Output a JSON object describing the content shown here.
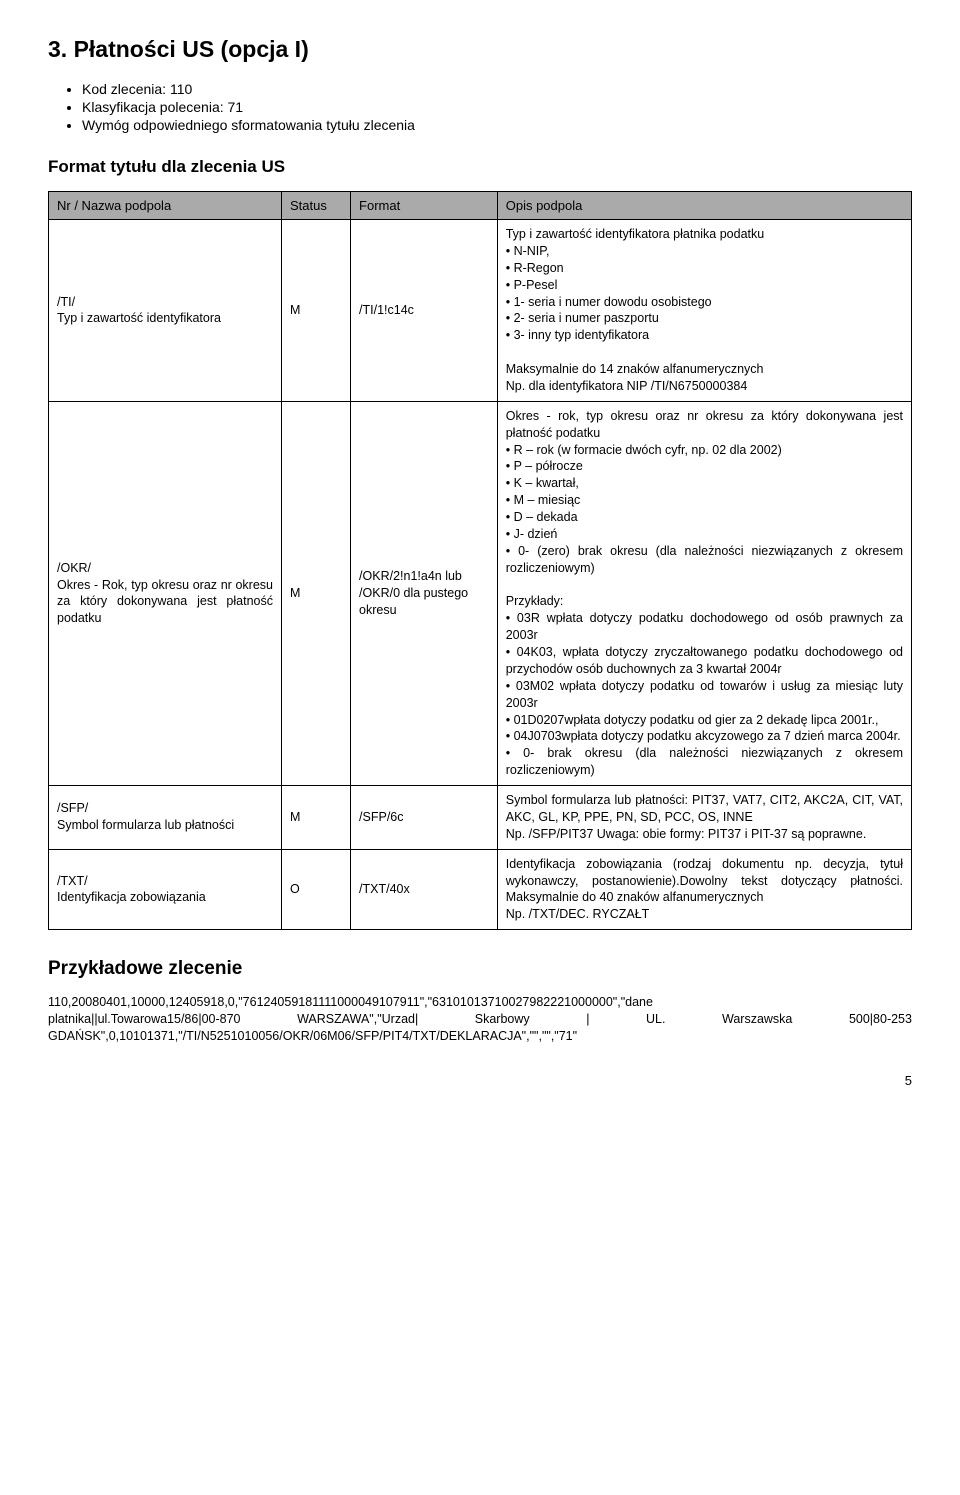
{
  "section": {
    "title": "3. Płatności US (opcja I)",
    "bullets": [
      "Kod zlecenia: 110",
      "Klasyfikacja polecenia: 71",
      "Wymóg odpowiedniego sformatowania tytułu zlecenia"
    ],
    "subhead": "Format tytułu dla zlecenia US"
  },
  "table": {
    "headers": {
      "c1": "Nr / Nazwa podpola",
      "c2": "Status",
      "c3": "Format",
      "c4": "Opis podpola"
    },
    "rows": [
      {
        "name": "/TI/\nTyp i zawartość identyfikatora",
        "status": "M",
        "format": "/TI/1!c14c",
        "desc": "Typ i zawartość identyfikatora płatnika podatku\n• N-NIP,\n• R-Regon\n• P-Pesel\n• 1- seria i numer dowodu osobistego\n• 2- seria i numer paszportu\n• 3- inny typ identyfikatora\n\nMaksymalnie do 14 znaków alfanumerycznych\nNp. dla identyfikatora NIP /TI/N6750000384"
      },
      {
        "name": "/OKR/\nOkres - Rok, typ okresu oraz nr okresu za który dokonywana jest płatność podatku",
        "status": "M",
        "format": "/OKR/2!n1!a4n lub /OKR/0 dla pustego okresu",
        "desc": "Okres - rok, typ okresu oraz nr okresu za który dokonywana jest płatność podatku\n• R – rok (w formacie dwóch cyfr, np. 02 dla 2002)\n• P – półrocze\n• K – kwartał,\n• M – miesiąc\n• D – dekada\n• J- dzień\n• 0- (zero) brak okresu (dla należności niezwiązanych z okresem rozliczeniowym)\n\nPrzykłady:\n• 03R wpłata dotyczy podatku dochodowego od osób prawnych za 2003r\n• 04K03, wpłata dotyczy zryczałtowanego podatku dochodowego od przychodów osób duchownych za 3 kwartał 2004r\n• 03M02 wpłata dotyczy podatku od towarów i usług za miesiąc luty 2003r\n• 01D0207wpłata dotyczy podatku od gier za 2 dekadę lipca 2001r.,\n• 04J0703wpłata dotyczy podatku akcyzowego za 7 dzień marca 2004r.\n• 0- brak okresu (dla należności niezwiązanych z okresem rozliczeniowym)"
      },
      {
        "name": "/SFP/\nSymbol formularza lub płatności",
        "status": "M",
        "format": "/SFP/6c",
        "desc": "Symbol formularza lub płatności: PIT37, VAT7, CIT2, AKC2A, CIT, VAT, AKC, GL, KP, PPE, PN, SD, PCC, OS, INNE\nNp. /SFP/PIT37 Uwaga: obie formy: PIT37 i PIT-37 są poprawne."
      },
      {
        "name": "/TXT/\nIdentyfikacja zobowiązania",
        "status": "O",
        "format": "/TXT/40x",
        "desc": "Identyfikacja zobowiązania (rodzaj dokumentu np. decyzja, tytuł wykonawczy, postanowienie).Dowolny tekst dotyczący płatności. Maksymalnie do 40 znaków alfanumerycznych\nNp. /TXT/DEC. RYCZAŁT"
      }
    ]
  },
  "example": {
    "title": "Przykładowe zlecenie",
    "line1": {
      "a": "110,20080401,10000,12405918,0,\"76124059181111000049107911\",\"63101013710027982221000000\",\"dane",
      "b": ""
    },
    "line2": {
      "a": "platnika||ul.Towarowa15/86|00-870",
      "b": "WARSZAWA\",\"Urzad|",
      "c": "Skarbowy",
      "d": "|",
      "e": "UL.",
      "f": "Warszawska",
      "g": "500|80-253"
    },
    "line3": "GDAŃSK\",0,10101371,\"/TI/N5251010056/OKR/06M06/SFP/PIT4/TXT/DEKLARACJA\",\"\",\"\",\"71\""
  },
  "page_number": "5",
  "colors": {
    "header_bg": "#aaaaaa",
    "border": "#000000",
    "text": "#000000",
    "background": "#ffffff"
  }
}
